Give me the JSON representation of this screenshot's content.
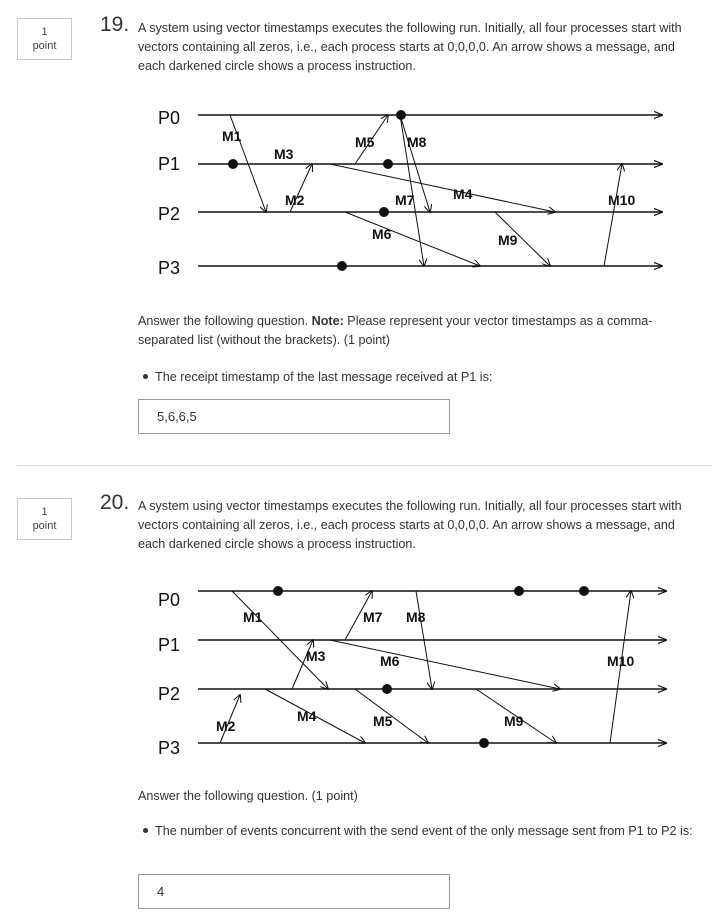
{
  "questions": [
    {
      "points_label": "1\npoint",
      "number": "19.",
      "text": "A system using vector timestamps executes the following run. Initially, all four processes start with vectors containing all zeros, i.e., each process starts at 0,0,0,0. An arrow shows a message, and each darkened circle shows a process instruction.",
      "note_label": "Note:",
      "answer_prefix": "Answer the following question. ",
      "answer_suffix": " Please represent your vector timestamps as a comma-separated list (without the brackets). (1 point)",
      "bullet": "The receipt timestamp of the last message received at P1 is:",
      "answer": "5,6,6,5",
      "diagram": {
        "processes": [
          "P0",
          "P1",
          "P2",
          "P3"
        ],
        "messages": [
          "M1",
          "M3",
          "M2",
          "M5",
          "M8",
          "M7",
          "M4",
          "M6",
          "M9",
          "M10"
        ]
      }
    },
    {
      "points_label": "1\npoint",
      "number": "20.",
      "text": "A system using vector timestamps executes the following run. Initially, all four processes start with vectors containing all zeros, i.e., each process starts at 0,0,0,0. An arrow shows a message, and each darkened circle shows a process instruction.",
      "answer_prefix": "Answer the following question. (1 point)",
      "bullet": "The number of events concurrent with the send event of the only message sent from P1 to P2 is:",
      "answer": "4",
      "diagram": {
        "processes": [
          "P0",
          "P1",
          "P2",
          "P3"
        ],
        "messages": [
          "M1",
          "M3",
          "M7",
          "M8",
          "M6",
          "M10",
          "M2",
          "M4",
          "M5",
          "M9"
        ]
      }
    }
  ]
}
